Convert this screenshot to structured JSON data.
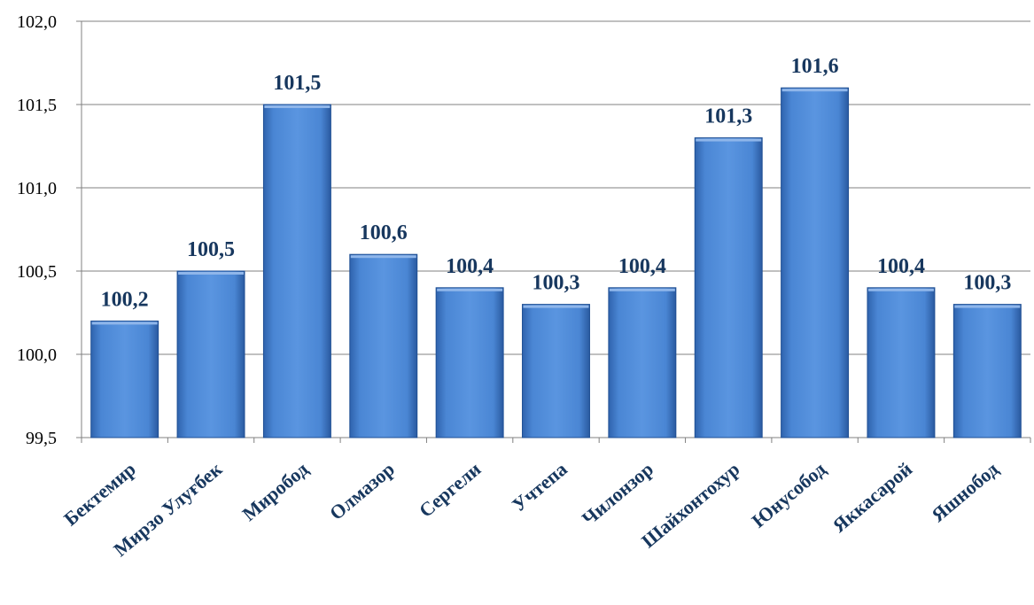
{
  "chart_data": {
    "type": "bar",
    "title": "",
    "xlabel": "",
    "ylabel": "",
    "categories": [
      "Бектемир",
      "Мирзо Улуғбек",
      "Миробод",
      "Олмазор",
      "Сергели",
      "Учтепа",
      "Чилонзор",
      "Шайхонтохур",
      "Юнусобод",
      "Яккасарой",
      "Яшнобод"
    ],
    "values": [
      100.2,
      100.5,
      101.5,
      100.6,
      100.4,
      100.3,
      100.4,
      101.3,
      101.6,
      100.4,
      100.3
    ],
    "value_labels": [
      "100,2",
      "100,5",
      "101,5",
      "100,6",
      "100,4",
      "100,3",
      "100,4",
      "101,3",
      "101,6",
      "100,4",
      "100,3"
    ],
    "ylim": [
      99.5,
      102.0
    ],
    "yticks": [
      99.5,
      100.0,
      100.5,
      101.0,
      101.5,
      102.0
    ],
    "ytick_labels": [
      "99,5",
      "100,0",
      "100,5",
      "101,0",
      "101,5",
      "102,0"
    ],
    "grid": true,
    "legend": "none",
    "colors": {
      "bar": "#4a86d4",
      "bar_dark": "#1f4f94",
      "grid": "#808080",
      "label": "#17375e"
    }
  }
}
